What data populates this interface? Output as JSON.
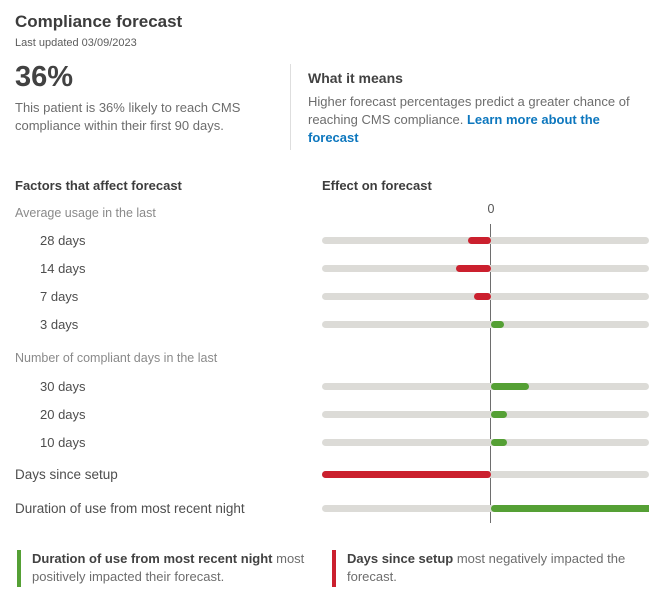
{
  "header": {
    "title": "Compliance forecast",
    "last_updated": "Last updated 03/09/2023"
  },
  "summary": {
    "percentage": "36%",
    "description": "This patient is 36% likely to reach CMS compliance within their first 90 days.",
    "what_it_means": {
      "title": "What it means",
      "description": "Higher forecast percentages predict a greater chance of reaching CMS compliance. ",
      "link_label": "Learn more about the forecast",
      "link_color": "#0d77be"
    }
  },
  "chart_data": {
    "type": "bar",
    "orientation": "horizontal",
    "left_header": "Factors that affect forecast",
    "right_header": "Effect on forecast",
    "axis_zero_label": "0",
    "axis_note": "bars show relative positive/negative effect on forecast; no numeric scale shown besides 0",
    "colors": {
      "negative": "#cb202e",
      "positive": "#55a035",
      "track": "#dcdbd7",
      "zero_line": "#6e6e6e"
    },
    "rows": [
      {
        "type": "group",
        "label": "Average usage in the last"
      },
      {
        "type": "item",
        "label": "28 days",
        "effect": -23
      },
      {
        "type": "item",
        "label": "14 days",
        "effect": -35
      },
      {
        "type": "item",
        "label": "7 days",
        "effect": -17
      },
      {
        "type": "item",
        "label": "3 days",
        "effect": 13
      },
      {
        "type": "group2",
        "label": "Number of compliant days in the last"
      },
      {
        "type": "item",
        "label": "30 days",
        "effect": 38
      },
      {
        "type": "item",
        "label": "20 days",
        "effect": 16
      },
      {
        "type": "item",
        "label": "10 days",
        "effect": 16
      },
      {
        "type": "factor1",
        "label": "Days since setup",
        "effect": -169
      },
      {
        "type": "factor2",
        "label": "Duration of use from most recent night",
        "effect": 170
      }
    ]
  },
  "callouts": {
    "positive": {
      "bold": "Duration of use from most recent night",
      "text": " most positively impacted their forecast.",
      "color": "#55a035"
    },
    "negative": {
      "bold": "Days since setup",
      "text": " most negatively impacted the forecast.",
      "color": "#cb202e"
    }
  }
}
